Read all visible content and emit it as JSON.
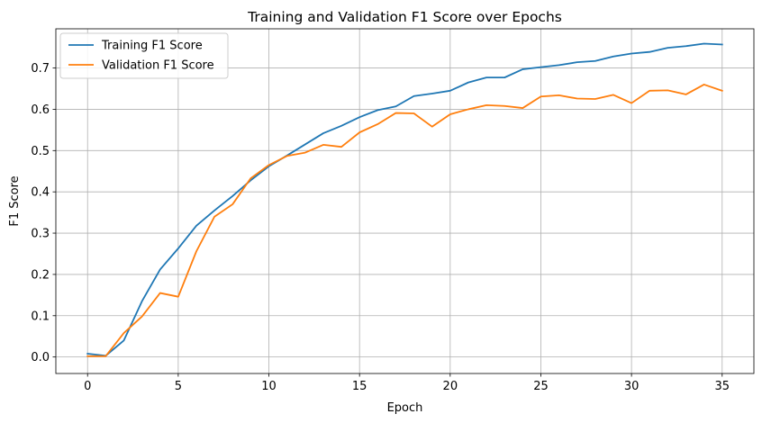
{
  "chart_data": {
    "type": "line",
    "title": "Training and Validation F1 Score over Epochs",
    "xlabel": "Epoch",
    "ylabel": "F1 Score",
    "xlim": [
      -1.75,
      36.75
    ],
    "ylim": [
      -0.04,
      0.795
    ],
    "xticks": [
      0,
      5,
      10,
      15,
      20,
      25,
      30,
      35
    ],
    "xtick_labels": [
      "0",
      "5",
      "10",
      "15",
      "20",
      "25",
      "30",
      "35"
    ],
    "yticks": [
      0.0,
      0.1,
      0.2,
      0.3,
      0.4,
      0.5,
      0.6,
      0.7
    ],
    "ytick_labels": [
      "0.0",
      "0.1",
      "0.2",
      "0.3",
      "0.4",
      "0.5",
      "0.6",
      "0.7"
    ],
    "grid": true,
    "legend_position": "top-left",
    "x": [
      0,
      1,
      2,
      3,
      4,
      5,
      6,
      7,
      8,
      9,
      10,
      11,
      12,
      13,
      14,
      15,
      16,
      17,
      18,
      19,
      20,
      21,
      22,
      23,
      24,
      25,
      26,
      27,
      28,
      29,
      30,
      31,
      32,
      33,
      34,
      35
    ],
    "series": [
      {
        "name": "Training F1 Score",
        "color": "#1f77b4",
        "values": [
          0.008,
          0.003,
          0.04,
          0.135,
          0.212,
          0.263,
          0.318,
          0.355,
          0.39,
          0.428,
          0.462,
          0.488,
          0.515,
          0.542,
          0.56,
          0.581,
          0.598,
          0.607,
          0.632,
          0.638,
          0.645,
          0.665,
          0.677,
          0.677,
          0.697,
          0.702,
          0.707,
          0.714,
          0.717,
          0.728,
          0.735,
          0.739,
          0.749,
          0.753,
          0.759,
          0.757
        ]
      },
      {
        "name": "Validation F1 Score",
        "color": "#ff7f0e",
        "values": [
          0.002,
          0.002,
          0.058,
          0.098,
          0.155,
          0.146,
          0.256,
          0.34,
          0.37,
          0.433,
          0.465,
          0.487,
          0.495,
          0.514,
          0.509,
          0.544,
          0.564,
          0.591,
          0.59,
          0.558,
          0.588,
          0.6,
          0.61,
          0.608,
          0.603,
          0.631,
          0.634,
          0.626,
          0.625,
          0.635,
          0.615,
          0.645,
          0.646,
          0.636,
          0.66,
          0.645
        ]
      }
    ]
  }
}
